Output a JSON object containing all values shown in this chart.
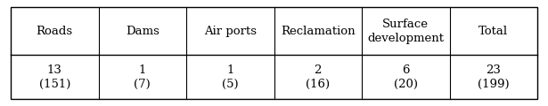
{
  "headers": [
    "Roads",
    "Dams",
    "Air ports",
    "Reclamation",
    "Surface\ndevelopment",
    "Total"
  ],
  "values": [
    "13\n(151)",
    "1\n(7)",
    "1\n(5)",
    "2\n(16)",
    "6\n(20)",
    "23\n(199)"
  ],
  "background_color": "#ffffff",
  "border_color": "#000000",
  "text_color": "#000000",
  "header_fontsize": 9.5,
  "value_fontsize": 9.5,
  "fig_width": 6.15,
  "fig_height": 1.2,
  "dpi": 100
}
